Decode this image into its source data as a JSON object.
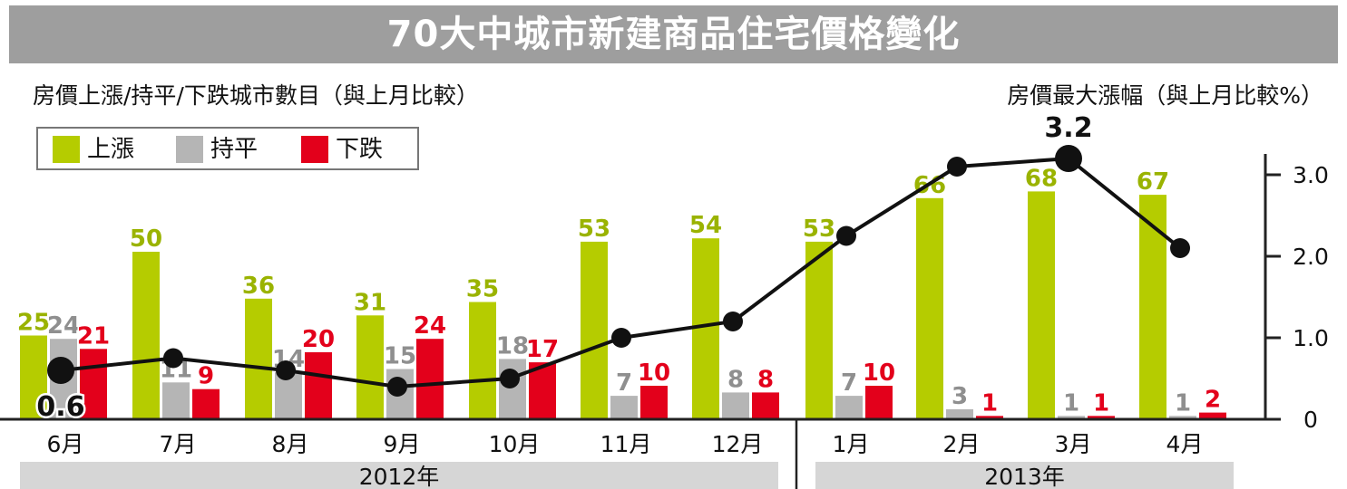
{
  "title": "70大中城市新建商品住宅價格變化",
  "left_subtitle": "房價上漲/持平/下跌城市數目（與上月比較）",
  "right_subtitle": "房價最大漲幅（與上月比較%）",
  "legend": [
    {
      "label": "上漲",
      "color": "#b5cc00"
    },
    {
      "label": "持平",
      "color": "#b5b5b5"
    },
    {
      "label": "下跌",
      "color": "#e3001b"
    }
  ],
  "chart_data": {
    "type": "bar",
    "categories": [
      "6月",
      "7月",
      "8月",
      "9月",
      "10月",
      "11月",
      "12月",
      "1月",
      "2月",
      "3月",
      "4月"
    ],
    "series": [
      {
        "name": "上漲",
        "color": "#b5cc00",
        "values": [
          25,
          50,
          36,
          31,
          35,
          53,
          54,
          53,
          66,
          68,
          67
        ]
      },
      {
        "name": "持平",
        "color": "#b5b5b5",
        "values": [
          24,
          11,
          14,
          15,
          18,
          7,
          8,
          7,
          3,
          1,
          1
        ]
      },
      {
        "name": "下跌",
        "color": "#e3001b",
        "values": [
          21,
          9,
          20,
          24,
          17,
          10,
          8,
          10,
          1,
          1,
          2
        ]
      }
    ],
    "line_series": {
      "name": "房價最大漲幅",
      "values": [
        0.6,
        0.75,
        0.6,
        0.4,
        0.5,
        1.0,
        1.2,
        2.25,
        3.1,
        3.2,
        2.1
      ],
      "labeled": [
        {
          "index": 0,
          "label": "0.6"
        },
        {
          "index": 9,
          "label": "3.2"
        }
      ]
    },
    "right_axis": {
      "ticks": [
        "3.0",
        "2.0",
        "1.0",
        "0"
      ],
      "tick_values": [
        3.0,
        2.0,
        1.0,
        0
      ]
    },
    "year_groups": [
      {
        "label": "2012年",
        "first": 0,
        "last": 6
      },
      {
        "label": "2013年",
        "first": 7,
        "last": 10
      }
    ],
    "ylim_left": [
      0,
      75
    ],
    "ylim_right": [
      0,
      3.35
    ],
    "grid": false
  }
}
